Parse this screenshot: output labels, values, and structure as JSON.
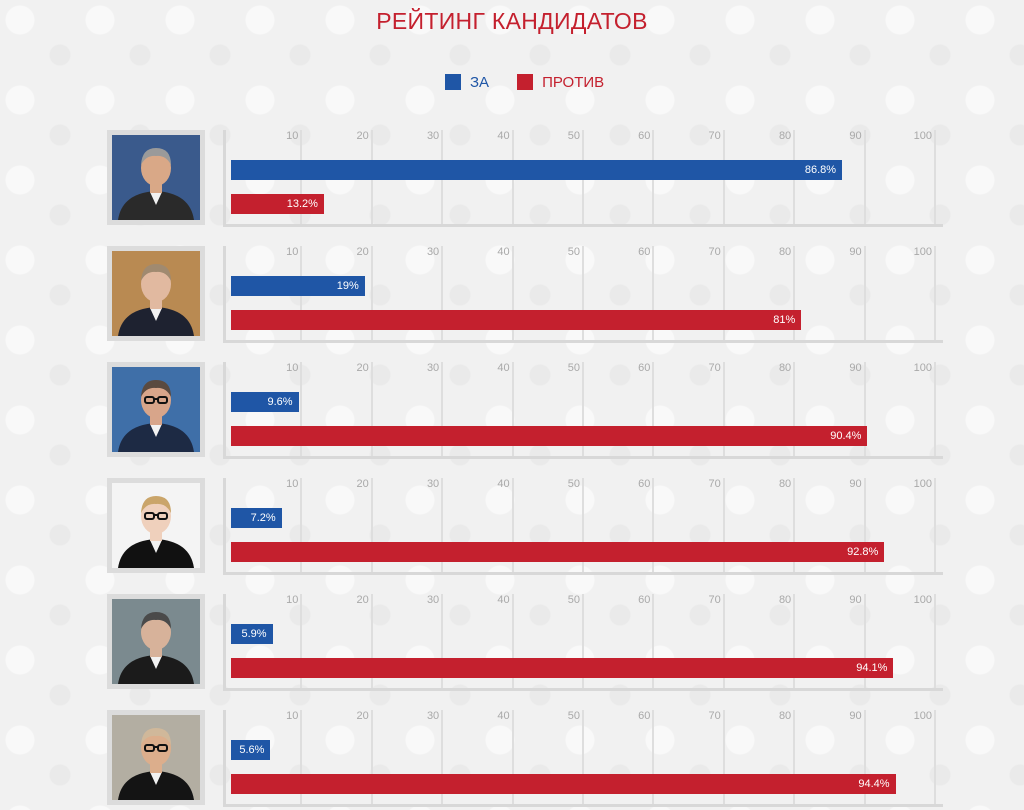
{
  "chart_data": {
    "type": "bar",
    "title": "РЕЙТИНГ КАНДИДАТОВ",
    "orientation": "horizontal",
    "legend": {
      "placement": "top-center"
    },
    "series": [
      {
        "name": "ЗА",
        "color": "#1f56a6"
      },
      {
        "name": "ПРОТИВ",
        "color": "#c4202e"
      }
    ],
    "xlim": [
      0,
      100
    ],
    "ticks": [
      "10",
      "20",
      "30",
      "40",
      "50",
      "60",
      "70",
      "80",
      "90",
      "100"
    ],
    "grid": true,
    "candidates": [
      {
        "values": [
          86.8,
          13.2
        ],
        "labels": [
          "86.8%",
          "13.2%"
        ],
        "photo_bg": "#3a5a8c",
        "skin": "#d9a887",
        "hair": "#9a9a9a",
        "suit": "#2a2a2a",
        "glasses": false
      },
      {
        "values": [
          19,
          81
        ],
        "labels": [
          "19%",
          "81%"
        ],
        "photo_bg": "#b98a52",
        "skin": "#e1b9a0",
        "hair": "#a08a70",
        "suit": "#1e2230",
        "glasses": false
      },
      {
        "values": [
          9.6,
          90.4
        ],
        "labels": [
          "9.6%",
          "90.4%"
        ],
        "photo_bg": "#3f6fa8",
        "skin": "#d8a58a",
        "hair": "#5a4a40",
        "suit": "#1d2a44",
        "glasses": true
      },
      {
        "values": [
          7.2,
          92.8
        ],
        "labels": [
          "7.2%",
          "92.8%"
        ],
        "photo_bg": "#f4f4f4",
        "skin": "#efd0bc",
        "hair": "#caa56a",
        "suit": "#111111",
        "glasses": true
      },
      {
        "values": [
          5.9,
          94.1
        ],
        "labels": [
          "5.9%",
          "94.1%"
        ],
        "photo_bg": "#7b8a8f",
        "skin": "#d7b29a",
        "hair": "#4a4a4a",
        "suit": "#1b1b1b",
        "glasses": false
      },
      {
        "values": [
          5.6,
          94.4
        ],
        "labels": [
          "5.6%",
          "94.4%"
        ],
        "photo_bg": "#b3aea2",
        "skin": "#dcae8c",
        "hair": "#d0b89a",
        "suit": "#141414",
        "glasses": true
      }
    ]
  }
}
